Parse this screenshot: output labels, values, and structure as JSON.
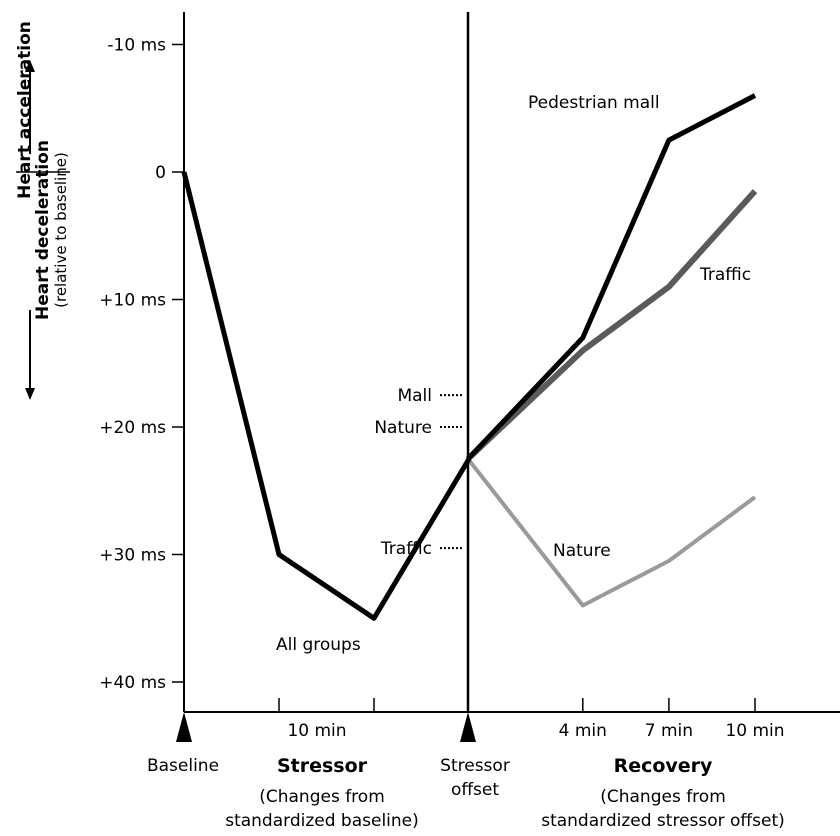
{
  "chart_data": {
    "type": "line",
    "y_axis": {
      "ticks": [
        "-10 ms",
        "0",
        "+10 ms",
        "+20 ms",
        "+30 ms",
        "+40 ms"
      ],
      "tick_values": [
        -10,
        0,
        10,
        20,
        30,
        40
      ],
      "range": [
        -13,
        42
      ],
      "inverted": true,
      "label_acceleration": "Heart acceleration",
      "label_deceleration": "Heart deceleration",
      "label_relative": "(relative to baseline)"
    },
    "x_axis": {
      "tick_labels": [
        "10 min",
        "4 min",
        "7 min",
        "10 min"
      ],
      "baseline_label": "Baseline",
      "stressor_label": "Stressor",
      "stressor_sub_1": "(Changes from",
      "stressor_sub_2": "standardized baseline)",
      "offset_label_1": "Stressor",
      "offset_label_2": "offset",
      "recovery_label": "Recovery",
      "recovery_sub_1": "(Changes from",
      "recovery_sub_2": "standardized stressor offset)"
    },
    "stressor_series": {
      "name": "All groups",
      "x": [
        0,
        5,
        10,
        15
      ],
      "y": [
        0,
        30,
        35,
        22.5
      ]
    },
    "recovery_series": [
      {
        "name": "Pedestrian mall",
        "x": [
          0,
          4,
          7,
          10
        ],
        "y": [
          22.5,
          13,
          -2.5,
          -6
        ],
        "color": "#000000"
      },
      {
        "name": "Traffic",
        "x": [
          0,
          4,
          7,
          10
        ],
        "y": [
          22.5,
          14,
          9,
          1.5
        ],
        "color": "#666666"
      },
      {
        "name": "Nature",
        "x": [
          0,
          4,
          7,
          10
        ],
        "y": [
          22.5,
          34,
          30.5,
          25.5
        ],
        "color": "#999999"
      }
    ],
    "offset_markers": [
      {
        "label": "Mall",
        "value": 17.5
      },
      {
        "label": "Nature",
        "value": 20
      },
      {
        "label": "Traffic",
        "value": 29.5
      }
    ],
    "series_labels": {
      "pedestrian_mall": "Pedestrian mall",
      "traffic": "Traffic",
      "nature": "Nature",
      "all_groups": "All groups"
    }
  }
}
